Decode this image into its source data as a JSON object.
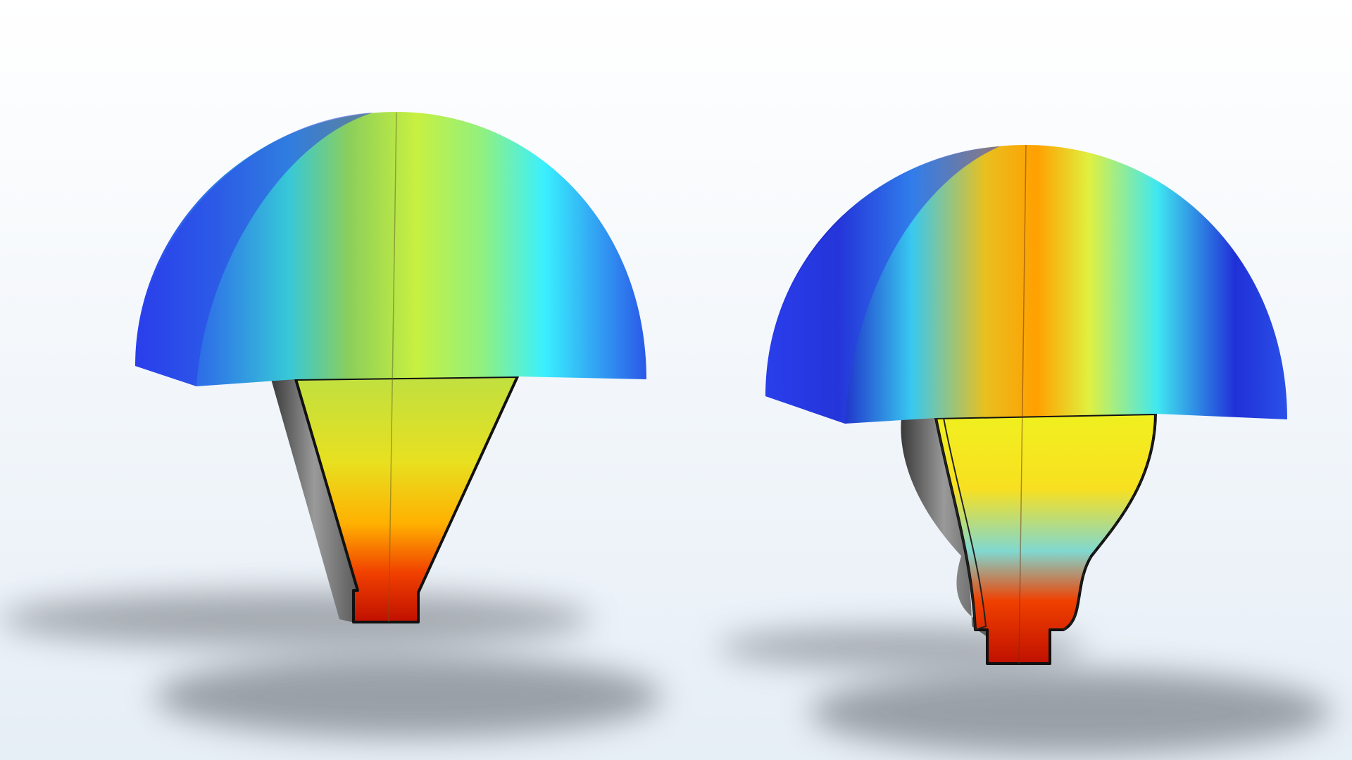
{
  "scene": {
    "background_top": "#ffffff",
    "background_bottom": "#e8f0f8",
    "shadow_color": "#5a5f66",
    "outline_color": "#111111",
    "colormap": [
      "#2233ee",
      "#2f7fe8",
      "#38f0ff",
      "#b8f060",
      "#f8ff20",
      "#ffb000",
      "#e82000",
      "#b01000"
    ],
    "objects": [
      {
        "icon": "horn-conical-simulation",
        "name": "left-horn"
      },
      {
        "icon": "horn-curved-simulation",
        "name": "right-horn"
      }
    ]
  }
}
